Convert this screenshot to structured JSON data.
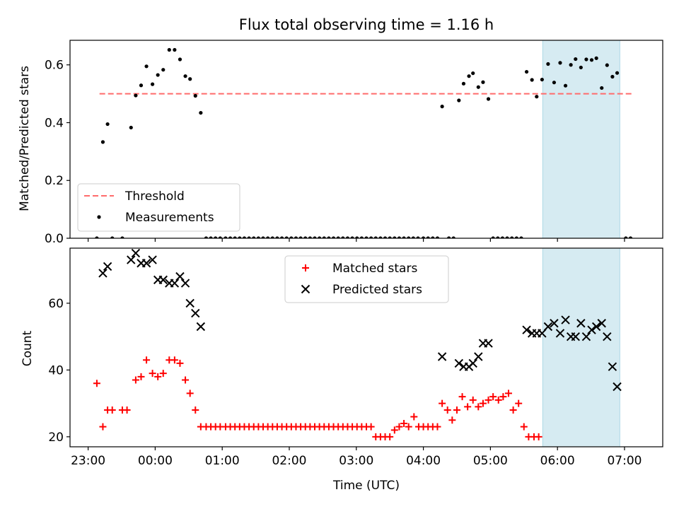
{
  "title": "Flux total observing time = 1.16 h",
  "colors": {
    "threshold": "#ff6b6b",
    "measurement": "#000000",
    "matched": "#ff0000",
    "predicted": "#000000",
    "highlight": "#add8e6"
  },
  "chart_data": [
    {
      "type": "scatter",
      "ylabel": "Matched/Predicted stars",
      "xlabel": "",
      "xlim": [
        -0.27,
        8.57
      ],
      "ylim": [
        0,
        0.685
      ],
      "y_ticks": [
        0.0,
        0.2,
        0.4,
        0.6
      ],
      "y_tick_labels": [
        "0.0",
        "0.2",
        "0.4",
        "0.6"
      ],
      "x_ticks": [
        0,
        1,
        2,
        3,
        4,
        5,
        6,
        7,
        8
      ],
      "highlight_x": [
        6.78,
        7.93
      ],
      "threshold": {
        "y": 0.5,
        "x": [
          0.17,
          8.12
        ]
      },
      "legend": {
        "position": "lower-left",
        "entries": [
          "Threshold",
          "Measurements"
        ]
      },
      "series": [
        {
          "name": "Measurements",
          "points": [
            [
              0.13,
              0.0
            ],
            [
              0.22,
              0.333
            ],
            [
              0.29,
              0.395
            ],
            [
              0.36,
              0.0
            ],
            [
              0.51,
              0.0
            ],
            [
              0.64,
              0.383
            ],
            [
              0.71,
              0.494
            ],
            [
              0.79,
              0.529
            ],
            [
              0.87,
              0.595
            ],
            [
              0.96,
              0.533
            ],
            [
              1.04,
              0.565
            ],
            [
              1.12,
              0.583
            ],
            [
              1.21,
              0.652
            ],
            [
              1.29,
              0.652
            ],
            [
              1.37,
              0.619
            ],
            [
              1.45,
              0.561
            ],
            [
              1.52,
              0.551
            ],
            [
              1.6,
              0.493
            ],
            [
              1.68,
              0.434
            ],
            [
              1.76,
              0.0
            ],
            [
              1.83,
              0.0
            ],
            [
              1.9,
              0.0
            ],
            [
              1.97,
              0.0
            ],
            [
              2.05,
              0.0
            ],
            [
              2.12,
              0.0
            ],
            [
              2.19,
              0.0
            ],
            [
              2.26,
              0.0
            ],
            [
              2.33,
              0.0
            ],
            [
              2.4,
              0.0
            ],
            [
              2.47,
              0.0
            ],
            [
              2.54,
              0.0
            ],
            [
              2.61,
              0.0
            ],
            [
              2.68,
              0.0
            ],
            [
              2.75,
              0.0
            ],
            [
              2.82,
              0.0
            ],
            [
              2.89,
              0.0
            ],
            [
              2.96,
              0.0
            ],
            [
              3.03,
              0.0
            ],
            [
              3.1,
              0.0
            ],
            [
              3.17,
              0.0
            ],
            [
              3.24,
              0.0
            ],
            [
              3.31,
              0.0
            ],
            [
              3.38,
              0.0
            ],
            [
              3.45,
              0.0
            ],
            [
              3.52,
              0.0
            ],
            [
              3.59,
              0.0
            ],
            [
              3.66,
              0.0
            ],
            [
              3.73,
              0.0
            ],
            [
              3.8,
              0.0
            ],
            [
              3.87,
              0.0
            ],
            [
              3.94,
              0.0
            ],
            [
              4.01,
              0.0
            ],
            [
              4.08,
              0.0
            ],
            [
              4.15,
              0.0
            ],
            [
              4.22,
              0.0
            ],
            [
              4.29,
              0.0
            ],
            [
              4.36,
              0.0
            ],
            [
              4.43,
              0.0
            ],
            [
              4.5,
              0.0
            ],
            [
              4.57,
              0.0
            ],
            [
              4.64,
              0.0
            ],
            [
              4.71,
              0.0
            ],
            [
              4.78,
              0.0
            ],
            [
              4.85,
              0.0
            ],
            [
              4.92,
              0.0
            ],
            [
              5.0,
              0.0
            ],
            [
              5.07,
              0.0
            ],
            [
              5.14,
              0.0
            ],
            [
              5.21,
              0.0
            ],
            [
              5.28,
              0.456
            ],
            [
              5.38,
              0.0
            ],
            [
              5.45,
              0.0
            ],
            [
              5.53,
              0.477
            ],
            [
              5.6,
              0.535
            ],
            [
              5.68,
              0.561
            ],
            [
              5.74,
              0.571
            ],
            [
              5.82,
              0.523
            ],
            [
              5.89,
              0.54
            ],
            [
              5.97,
              0.482
            ],
            [
              6.04,
              0.0
            ],
            [
              6.11,
              0.0
            ],
            [
              6.18,
              0.0
            ],
            [
              6.25,
              0.0
            ],
            [
              6.32,
              0.0
            ],
            [
              6.39,
              0.0
            ],
            [
              6.46,
              0.0
            ],
            [
              6.54,
              0.576
            ],
            [
              6.62,
              0.548
            ],
            [
              6.69,
              0.49
            ],
            [
              6.77,
              0.549
            ],
            [
              6.86,
              0.603
            ],
            [
              6.95,
              0.539
            ],
            [
              7.04,
              0.607
            ],
            [
              7.12,
              0.528
            ],
            [
              7.2,
              0.6
            ],
            [
              7.27,
              0.62
            ],
            [
              7.35,
              0.591
            ],
            [
              7.43,
              0.619
            ],
            [
              7.51,
              0.617
            ],
            [
              7.58,
              0.623
            ],
            [
              7.66,
              0.52
            ],
            [
              7.74,
              0.599
            ],
            [
              7.82,
              0.559
            ],
            [
              7.89,
              0.572
            ],
            [
              8.02,
              0.0
            ],
            [
              8.09,
              0.0
            ]
          ]
        }
      ]
    },
    {
      "type": "scatter",
      "ylabel": "Count",
      "xlabel": "Time (UTC)",
      "xlim": [
        -0.27,
        8.57
      ],
      "ylim": [
        17,
        76.5
      ],
      "y_ticks": [
        20,
        40,
        60
      ],
      "y_tick_labels": [
        "20",
        "40",
        "60"
      ],
      "x_ticks": [
        0,
        1,
        2,
        3,
        4,
        5,
        6,
        7,
        8
      ],
      "x_tick_labels": [
        "23:00",
        "00:00",
        "01:00",
        "02:00",
        "03:00",
        "04:00",
        "05:00",
        "06:00",
        "07:00"
      ],
      "highlight_x": [
        6.78,
        7.93
      ],
      "legend": {
        "position": "top-center",
        "entries": [
          "Matched stars",
          "Predicted stars"
        ]
      },
      "series": [
        {
          "name": "Matched stars",
          "marker": "plus",
          "points": [
            [
              0.13,
              36
            ],
            [
              0.22,
              23
            ],
            [
              0.29,
              28
            ],
            [
              0.36,
              28
            ],
            [
              0.51,
              28
            ],
            [
              0.58,
              28
            ],
            [
              0.71,
              37
            ],
            [
              0.79,
              38
            ],
            [
              0.87,
              43
            ],
            [
              0.96,
              39
            ],
            [
              1.04,
              38
            ],
            [
              1.12,
              39
            ],
            [
              1.21,
              43
            ],
            [
              1.29,
              43
            ],
            [
              1.37,
              42
            ],
            [
              1.45,
              37
            ],
            [
              1.52,
              33
            ],
            [
              1.6,
              28
            ],
            [
              1.68,
              23
            ],
            [
              1.76,
              23
            ],
            [
              1.83,
              23
            ],
            [
              1.9,
              23
            ],
            [
              1.97,
              23
            ],
            [
              2.05,
              23
            ],
            [
              2.12,
              23
            ],
            [
              2.19,
              23
            ],
            [
              2.26,
              23
            ],
            [
              2.33,
              23
            ],
            [
              2.4,
              23
            ],
            [
              2.47,
              23
            ],
            [
              2.54,
              23
            ],
            [
              2.61,
              23
            ],
            [
              2.68,
              23
            ],
            [
              2.75,
              23
            ],
            [
              2.82,
              23
            ],
            [
              2.89,
              23
            ],
            [
              2.96,
              23
            ],
            [
              3.03,
              23
            ],
            [
              3.1,
              23
            ],
            [
              3.17,
              23
            ],
            [
              3.24,
              23
            ],
            [
              3.31,
              23
            ],
            [
              3.38,
              23
            ],
            [
              3.45,
              23
            ],
            [
              3.52,
              23
            ],
            [
              3.59,
              23
            ],
            [
              3.66,
              23
            ],
            [
              3.73,
              23
            ],
            [
              3.8,
              23
            ],
            [
              3.87,
              23
            ],
            [
              3.94,
              23
            ],
            [
              4.01,
              23
            ],
            [
              4.08,
              23
            ],
            [
              4.15,
              23
            ],
            [
              4.22,
              23
            ],
            [
              4.29,
              20
            ],
            [
              4.36,
              20
            ],
            [
              4.43,
              20
            ],
            [
              4.5,
              20
            ],
            [
              4.57,
              22
            ],
            [
              4.64,
              23
            ],
            [
              4.71,
              24
            ],
            [
              4.78,
              23
            ],
            [
              4.86,
              26
            ],
            [
              4.93,
              23
            ],
            [
              5.0,
              23
            ],
            [
              5.07,
              23
            ],
            [
              5.14,
              23
            ],
            [
              5.21,
              23
            ],
            [
              5.28,
              30
            ],
            [
              5.36,
              28
            ],
            [
              5.43,
              25
            ],
            [
              5.5,
              28
            ],
            [
              5.58,
              32
            ],
            [
              5.66,
              29
            ],
            [
              5.74,
              31
            ],
            [
              5.82,
              29
            ],
            [
              5.89,
              30
            ],
            [
              5.97,
              31
            ],
            [
              6.04,
              32
            ],
            [
              6.12,
              31
            ],
            [
              6.19,
              32
            ],
            [
              6.27,
              33
            ],
            [
              6.34,
              28
            ],
            [
              6.42,
              30
            ],
            [
              6.5,
              23
            ],
            [
              6.57,
              20
            ],
            [
              6.65,
              20
            ],
            [
              6.72,
              20
            ]
          ]
        },
        {
          "name": "Predicted stars",
          "marker": "x",
          "points": [
            [
              0.22,
              69
            ],
            [
              0.29,
              71
            ],
            [
              0.64,
              73
            ],
            [
              0.71,
              75
            ],
            [
              0.79,
              72
            ],
            [
              0.87,
              72
            ],
            [
              0.96,
              73
            ],
            [
              1.04,
              67
            ],
            [
              1.12,
              67
            ],
            [
              1.21,
              66
            ],
            [
              1.29,
              66
            ],
            [
              1.37,
              68
            ],
            [
              1.45,
              66
            ],
            [
              1.52,
              60
            ],
            [
              1.6,
              57
            ],
            [
              1.68,
              53
            ],
            [
              5.28,
              44
            ],
            [
              5.53,
              42
            ],
            [
              5.6,
              41
            ],
            [
              5.68,
              41
            ],
            [
              5.74,
              42
            ],
            [
              5.82,
              44
            ],
            [
              5.89,
              48
            ],
            [
              5.97,
              48
            ],
            [
              6.54,
              52
            ],
            [
              6.62,
              51
            ],
            [
              6.69,
              51
            ],
            [
              6.77,
              51
            ],
            [
              6.86,
              53
            ],
            [
              6.95,
              54
            ],
            [
              7.04,
              51
            ],
            [
              7.12,
              55
            ],
            [
              7.2,
              50
            ],
            [
              7.27,
              50
            ],
            [
              7.35,
              54
            ],
            [
              7.43,
              50
            ],
            [
              7.51,
              52
            ],
            [
              7.58,
              53
            ],
            [
              7.66,
              54
            ],
            [
              7.74,
              50
            ],
            [
              7.82,
              41
            ],
            [
              7.89,
              35
            ]
          ]
        }
      ]
    }
  ]
}
